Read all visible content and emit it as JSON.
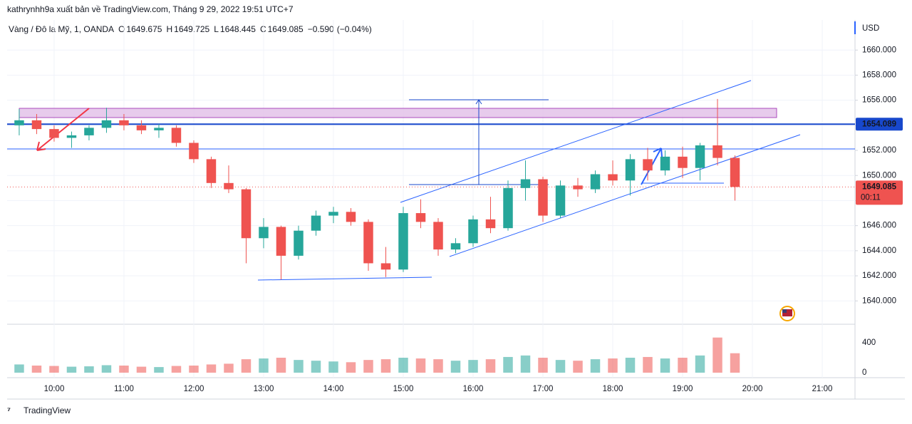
{
  "header": {
    "publisher": "kathrynhh9a xuất bản về TradingView.com, Tháng 9 29, 2022 19:51 UTC+7",
    "symbol": "Vàng / Đô la Mỹ, 1, OANDA",
    "ohlc": [
      {
        "label": "O",
        "value": 1649.675
      },
      {
        "label": "H",
        "value": 1649.725
      },
      {
        "label": "L",
        "value": 1648.445
      },
      {
        "label": "C",
        "value": 1649.085
      }
    ],
    "change": {
      "value": -0.59,
      "label": "−0.590"
    },
    "change_pct": {
      "value": -0.04,
      "label": "(−0.04%)"
    }
  },
  "footer": {
    "brand": "TradingView"
  },
  "chart_data": {
    "type": "candlestick",
    "currency": "USD",
    "up_color": "#26a69a",
    "down_color": "#ef5350",
    "x": [
      9.5,
      9.75,
      10,
      10.25,
      10.5,
      10.75,
      11,
      11.25,
      11.5,
      11.75,
      12,
      12.25,
      12.5,
      12.75,
      13,
      13.25,
      13.5,
      13.75,
      14,
      14.25,
      14.5,
      14.75,
      15,
      15.25,
      15.5,
      15.75,
      16,
      16.25,
      16.5,
      16.75,
      17,
      17.25,
      17.5,
      17.75,
      18,
      18.25,
      18.5,
      18.75,
      19,
      19.25,
      19.5,
      19.75
    ],
    "open": [
      1654.0,
      1654.4,
      1653.7,
      1653.0,
      1653.2,
      1653.8,
      1654.4,
      1654.0,
      1653.6,
      1653.8,
      1652.6,
      1651.3,
      1649.4,
      1648.9,
      1645.0,
      1645.9,
      1643.6,
      1645.6,
      1646.8,
      1647.1,
      1646.3,
      1643.0,
      1642.5,
      1647.0,
      1646.3,
      1644.1,
      1644.6,
      1646.5,
      1645.8,
      1649.0,
      1649.7,
      1646.8,
      1649.2,
      1648.9,
      1650.1,
      1649.6,
      1651.3,
      1650.4,
      1651.5,
      1650.6,
      1652.4,
      1651.4
    ],
    "high": [
      1655.3,
      1654.9,
      1654.0,
      1653.5,
      1654.0,
      1655.4,
      1654.9,
      1654.4,
      1654.1,
      1654.0,
      1652.8,
      1651.5,
      1650.8,
      1649.0,
      1646.6,
      1646.0,
      1646.0,
      1647.2,
      1647.5,
      1647.4,
      1646.5,
      1644.3,
      1647.5,
      1648.1,
      1646.6,
      1645.0,
      1646.8,
      1648.3,
      1649.6,
      1651.2,
      1649.9,
      1649.6,
      1649.8,
      1650.4,
      1651.2,
      1651.7,
      1652.2,
      1652.0,
      1652.3,
      1652.6,
      1656.1,
      1651.6
    ],
    "low": [
      1653.2,
      1653.3,
      1652.7,
      1652.2,
      1652.8,
      1653.4,
      1653.6,
      1653.3,
      1653.0,
      1652.3,
      1651.0,
      1649.0,
      1648.6,
      1643.0,
      1644.2,
      1641.7,
      1643.3,
      1645.2,
      1646.2,
      1646.0,
      1642.4,
      1641.9,
      1642.3,
      1645.8,
      1643.6,
      1643.8,
      1644.3,
      1645.4,
      1645.6,
      1648.0,
      1646.3,
      1646.6,
      1648.3,
      1648.6,
      1649.2,
      1648.4,
      1649.6,
      1650.0,
      1649.8,
      1649.6,
      1650.8,
      1648.0
    ],
    "close": [
      1654.4,
      1653.7,
      1653.0,
      1653.2,
      1653.8,
      1654.4,
      1654.0,
      1653.6,
      1653.8,
      1652.6,
      1651.3,
      1649.4,
      1648.9,
      1645.0,
      1645.9,
      1643.6,
      1645.6,
      1646.8,
      1647.1,
      1646.3,
      1643.0,
      1642.5,
      1647.0,
      1646.3,
      1644.1,
      1644.6,
      1646.5,
      1645.8,
      1649.0,
      1649.7,
      1646.8,
      1649.2,
      1648.9,
      1650.1,
      1649.6,
      1651.3,
      1650.4,
      1651.5,
      1650.6,
      1652.4,
      1651.4,
      1649.085
    ],
    "volume": [
      110,
      95,
      90,
      80,
      85,
      100,
      95,
      80,
      75,
      90,
      95,
      110,
      120,
      180,
      190,
      200,
      170,
      160,
      150,
      140,
      170,
      180,
      200,
      190,
      180,
      160,
      170,
      180,
      210,
      230,
      200,
      170,
      160,
      180,
      190,
      200,
      210,
      190,
      200,
      230,
      470,
      260
    ],
    "xlim": [
      9.327,
      21.469
    ],
    "xticks": [
      {
        "value": 10,
        "label": "10:00"
      },
      {
        "value": 11,
        "label": "11:00"
      },
      {
        "value": 12,
        "label": "12:00"
      },
      {
        "value": 13,
        "label": "13:00"
      },
      {
        "value": 14,
        "label": "14:00"
      },
      {
        "value": 15,
        "label": "15:00"
      },
      {
        "value": 16,
        "label": "16:00"
      },
      {
        "value": 17,
        "label": "17:00"
      },
      {
        "value": 18,
        "label": "18:00"
      },
      {
        "value": 19,
        "label": "19:00"
      },
      {
        "value": 20,
        "label": "20:00"
      },
      {
        "value": 21,
        "label": "21:00"
      }
    ],
    "ylim": [
      1638.14,
      1662.4
    ],
    "yticks": [
      {
        "value": 1640,
        "label": "1640.000"
      },
      {
        "value": 1642,
        "label": "1642.000"
      },
      {
        "value": 1644,
        "label": "1644.000"
      },
      {
        "value": 1646,
        "label": "1646.000"
      },
      {
        "value": 1648,
        "label": "1648.000"
      },
      {
        "value": 1650,
        "label": "1650.000"
      },
      {
        "value": 1652,
        "label": "1652.000"
      },
      {
        "value": 1654,
        "label": "1654.000"
      },
      {
        "value": 1656,
        "label": "1656.000"
      },
      {
        "value": 1658,
        "label": "1658.000"
      },
      {
        "value": 1660,
        "label": "1660.000"
      }
    ],
    "volume_lim": [
      -67,
      648
    ],
    "volume_ticks": [
      0,
      400
    ],
    "price_line": 1654.089,
    "last_price": 1649.085,
    "countdown": "00:11",
    "grid": true
  }
}
